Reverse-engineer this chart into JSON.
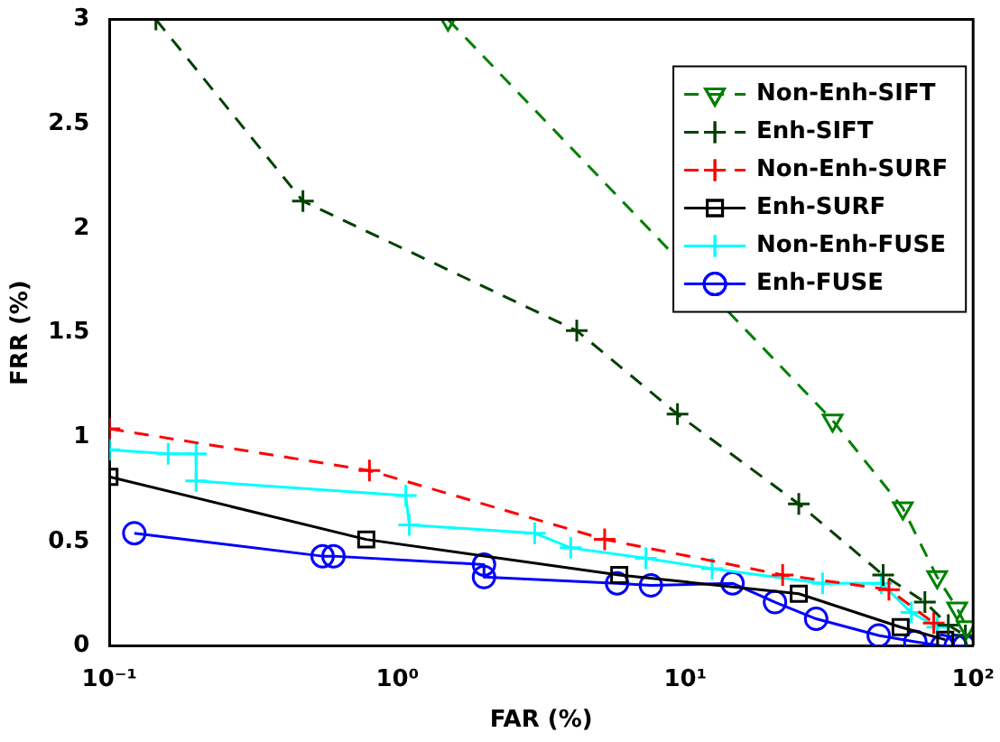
{
  "chart_data": {
    "type": "line",
    "xlabel": "FAR (%)",
    "ylabel": "FRR (%)",
    "log": "x",
    "xlim": [
      0.1,
      100
    ],
    "xticks": [
      {
        "value": 0.1,
        "label": "10⁻¹"
      },
      {
        "value": 1,
        "label": "10⁰"
      },
      {
        "value": 10,
        "label": "10¹"
      },
      {
        "value": 100,
        "label": "10²"
      }
    ],
    "ylim": [
      0,
      3
    ],
    "yticks": [
      0,
      0.5,
      1,
      1.5,
      2,
      2.5,
      3
    ],
    "grid": false,
    "legend": "top right",
    "series": [
      {
        "name": "Non-Enh-SIFT",
        "color": "#008000",
        "marker": "triangle",
        "line_style": "dashed",
        "x": [
          1.5,
          32.5,
          57,
          75,
          88,
          95
        ],
        "values": [
          3,
          1.08,
          0.66,
          0.33,
          0.18,
          0.09
        ]
      },
      {
        "name": "Enh-SIFT",
        "color": "#004000",
        "marker": "cross",
        "line_style": "dashed",
        "x": [
          0.145,
          0.47,
          4.2,
          9.4,
          24.8,
          48.7,
          68,
          82,
          94
        ],
        "values": [
          3,
          2.13,
          1.51,
          1.11,
          0.68,
          0.34,
          0.21,
          0.1,
          0.05
        ]
      },
      {
        "name": "Non-Enh-SURF",
        "color": "#ff0000",
        "marker": "cross",
        "line_style": "dashed",
        "x": [
          0.1,
          0.8,
          5.25,
          21.8,
          51,
          73
        ],
        "values": [
          1.04,
          0.84,
          0.51,
          0.34,
          0.27,
          0.11
        ]
      },
      {
        "name": "Enh-SURF",
        "color": "#000000",
        "marker": "square",
        "line_style": "solid",
        "x": [
          0.1,
          0.78,
          5.9,
          24.8,
          56,
          80
        ],
        "values": [
          0.81,
          0.51,
          0.34,
          0.25,
          0.09,
          0.03
        ]
      },
      {
        "name": "Non-Enh-FUSE",
        "color": "#00ffff",
        "marker": "cross",
        "line_style": "solid",
        "x": [
          0.1,
          0.16,
          0.2,
          0.2,
          1.07,
          1.1,
          3,
          4,
          7.3,
          12.4,
          30,
          48,
          61,
          75
        ],
        "values": [
          0.94,
          0.92,
          0.92,
          0.79,
          0.72,
          0.58,
          0.54,
          0.47,
          0.42,
          0.37,
          0.3,
          0.3,
          0.16,
          0.09
        ]
      },
      {
        "name": "Enh-FUSE",
        "color": "#0000ff",
        "marker": "circle",
        "line_style": "solid",
        "x": [
          0.122,
          0.55,
          0.6,
          2,
          2,
          5.8,
          7.6,
          14.6,
          20.5,
          28.5,
          47,
          63,
          78,
          87,
          93
        ],
        "values": [
          0.54,
          0.43,
          0.43,
          0.39,
          0.33,
          0.3,
          0.29,
          0.3,
          0.21,
          0.13,
          0.05,
          0.02,
          0,
          0,
          0
        ]
      }
    ]
  }
}
